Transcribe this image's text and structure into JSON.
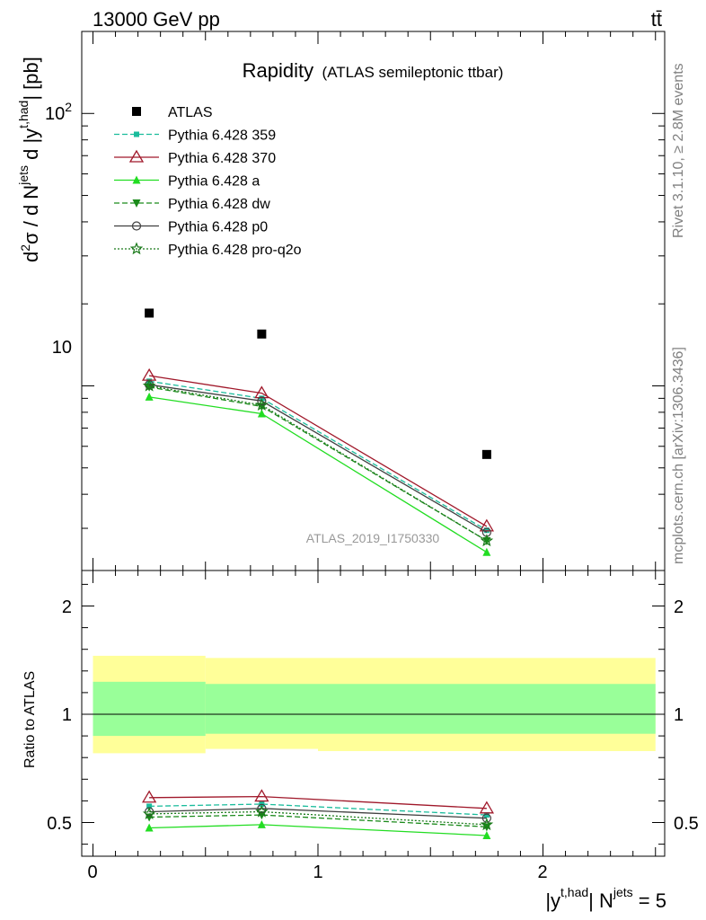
{
  "header": {
    "energy_label": "13000 GeV pp",
    "process_label": "tt̄"
  },
  "side_labels": {
    "rivet": "Rivet 3.1.10, ≥ 2.8M events",
    "mcplots": "mcplots.cern.ch [arXiv:1306.3436]"
  },
  "chart_data": [
    {
      "type": "line",
      "title": "Rapidity",
      "subtitle": "(ATLAS semileptonic ttbar)",
      "ylabel_parts": {
        "pre": "d",
        "pow": "2",
        "mid": "σ / d N",
        "sup_jets": "jets",
        "d_y": " d |y",
        "sup_had": "t,had",
        "post": "| [pb]"
      },
      "yscale": "log",
      "ylim": [
        2.1,
        200
      ],
      "ytick_labels": {
        "t10": "10",
        "t100_base": "10",
        "t100_exp": "2"
      },
      "watermark": "ATLAS_2019_I1750330",
      "x": [
        0.25,
        0.75,
        1.75
      ],
      "x_edges": [
        0,
        0.5,
        1,
        2.5
      ],
      "xlim": [
        -0.07,
        2.55
      ],
      "legend_position": "top-left",
      "series": [
        {
          "name": "ATLAS",
          "color": "#000000",
          "marker": "square",
          "dash": "",
          "values": [
            18.5,
            15.5,
            5.6
          ]
        },
        {
          "name": "Pythia 6.428 359",
          "color": "#1abc9c",
          "marker": "small-square",
          "dash": "6,3",
          "values": [
            10.4,
            9.0,
            2.95
          ]
        },
        {
          "name": "Pythia 6.428 370",
          "color": "#a0182a",
          "marker": "triangle-open",
          "dash": "",
          "values": [
            10.9,
            9.4,
            3.05
          ]
        },
        {
          "name": "Pythia 6.428 a",
          "color": "#22dd22",
          "marker": "triangle",
          "dash": "",
          "values": [
            9.1,
            7.9,
            2.45
          ]
        },
        {
          "name": "Pythia 6.428 dw",
          "color": "#1a8a1a",
          "marker": "triangle-down",
          "dash": "6,3",
          "values": [
            9.9,
            8.4,
            2.7
          ]
        },
        {
          "name": "Pythia 6.428 p0",
          "color": "#404040",
          "marker": "circle-open",
          "dash": "",
          "values": [
            10.1,
            8.8,
            2.9
          ]
        },
        {
          "name": "Pythia 6.428 pro-q2o",
          "color": "#1a7a1a",
          "marker": "star",
          "dash": "2,2",
          "values": [
            10.0,
            8.5,
            2.7
          ]
        }
      ]
    },
    {
      "type": "line",
      "ylabel": "Ratio to ATLAS",
      "xlabel_parts": {
        "pre": "|y",
        "sup_had": "t,had",
        "mid": "| N",
        "sup_jets": "jets",
        "post": " = 5"
      },
      "ylim": [
        0.4,
        2.3
      ],
      "yticks": [
        0.5,
        1,
        2
      ],
      "ytick_labels": [
        "0.5",
        "1",
        "2"
      ],
      "xticks": [
        0,
        1,
        2
      ],
      "xtick_labels": [
        "0",
        "1",
        "2"
      ],
      "bands": {
        "outer": {
          "color": "#ffff99",
          "lo": [
            0.82,
            0.84,
            0.83
          ],
          "hi": [
            1.27,
            1.26,
            1.26
          ]
        },
        "inner": {
          "color": "#99ff99",
          "lo": [
            0.9,
            0.91,
            0.91
          ],
          "hi": [
            1.15,
            1.14,
            1.14
          ]
        }
      },
      "series": [
        {
          "name": "Pythia 6.428 359",
          "values": [
            0.575,
            0.585,
            0.535
          ]
        },
        {
          "name": "Pythia 6.428 370",
          "values": [
            0.615,
            0.62,
            0.565
          ]
        },
        {
          "name": "Pythia 6.428 a",
          "values": [
            0.475,
            0.49,
            0.44
          ]
        },
        {
          "name": "Pythia 6.428 dw",
          "values": [
            0.525,
            0.535,
            0.48
          ]
        },
        {
          "name": "Pythia 6.428 p0",
          "values": [
            0.55,
            0.565,
            0.52
          ]
        },
        {
          "name": "Pythia 6.428 pro-q2o",
          "values": [
            0.54,
            0.55,
            0.49
          ]
        }
      ]
    }
  ]
}
